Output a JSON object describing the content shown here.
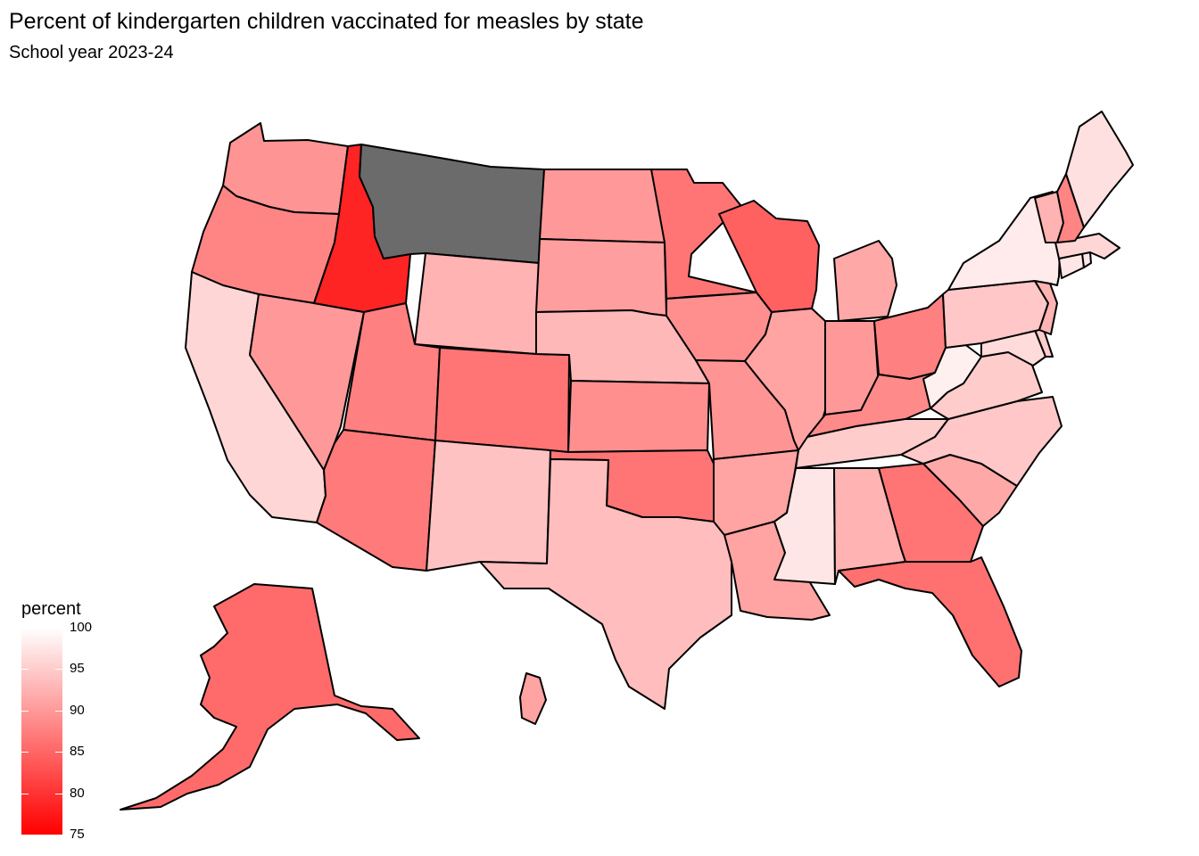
{
  "title": "Percent of kindergarten children vaccinated for measles by state",
  "subtitle": "School year 2023-24",
  "legend": {
    "title": "percent",
    "min": 75,
    "max": 100,
    "ticks": [
      "100",
      "95",
      "90",
      "85",
      "80",
      "75"
    ],
    "color_low": "#ff0000",
    "color_high": "#ffffff",
    "na_color": "#6b6b6b"
  },
  "states": [
    {
      "id": "WA",
      "value": 89.5
    },
    {
      "id": "OR",
      "value": 88.0
    },
    {
      "id": "CA",
      "value": 96.0
    },
    {
      "id": "NV",
      "value": 90.0
    },
    {
      "id": "ID",
      "value": 78.5
    },
    {
      "id": "MT",
      "value": null
    },
    {
      "id": "WY",
      "value": 92.5
    },
    {
      "id": "UT",
      "value": 87.5
    },
    {
      "id": "AZ",
      "value": 87.0
    },
    {
      "id": "CO",
      "value": 86.5
    },
    {
      "id": "NM",
      "value": 94.0
    },
    {
      "id": "ND",
      "value": 90.0
    },
    {
      "id": "SD",
      "value": 90.5
    },
    {
      "id": "NE",
      "value": 93.0
    },
    {
      "id": "KS",
      "value": 89.0
    },
    {
      "id": "OK",
      "value": 86.5
    },
    {
      "id": "TX",
      "value": 93.5
    },
    {
      "id": "MN",
      "value": 86.5
    },
    {
      "id": "IA",
      "value": 89.0
    },
    {
      "id": "MO",
      "value": 89.5
    },
    {
      "id": "AR",
      "value": 91.0
    },
    {
      "id": "LA",
      "value": 91.0
    },
    {
      "id": "WI",
      "value": 84.5
    },
    {
      "id": "IL",
      "value": 91.0
    },
    {
      "id": "MI",
      "value": 91.5
    },
    {
      "id": "IN",
      "value": 90.0
    },
    {
      "id": "OH",
      "value": 87.5
    },
    {
      "id": "KY",
      "value": 88.5
    },
    {
      "id": "TN",
      "value": 95.0
    },
    {
      "id": "MS",
      "value": 97.5
    },
    {
      "id": "AL",
      "value": 92.5
    },
    {
      "id": "GA",
      "value": 86.5
    },
    {
      "id": "FL",
      "value": 86.0
    },
    {
      "id": "SC",
      "value": 91.5
    },
    {
      "id": "NC",
      "value": 94.5
    },
    {
      "id": "VA",
      "value": 95.0
    },
    {
      "id": "WV",
      "value": 98.5
    },
    {
      "id": "MD",
      "value": 96.5
    },
    {
      "id": "DE",
      "value": 95.0
    },
    {
      "id": "PA",
      "value": 94.5
    },
    {
      "id": "NJ",
      "value": 92.5
    },
    {
      "id": "NY",
      "value": 98.0
    },
    {
      "id": "CT",
      "value": 97.5
    },
    {
      "id": "RI",
      "value": 97.5
    },
    {
      "id": "MA",
      "value": 96.0
    },
    {
      "id": "VT",
      "value": 92.5
    },
    {
      "id": "NH",
      "value": 88.0
    },
    {
      "id": "ME",
      "value": 97.0
    },
    {
      "id": "AK",
      "value": 85.5
    },
    {
      "id": "HI",
      "value": 91.0
    }
  ]
}
